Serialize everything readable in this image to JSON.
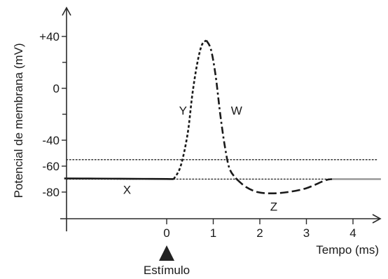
{
  "chart_data": {
    "type": "line",
    "title": "",
    "xlabel": "Tempo (ms)",
    "ylabel": "Potencial de membrana (mV)",
    "xlim": [
      -2.2,
      4.6
    ],
    "ylim": [
      -97,
      57
    ],
    "x_ticks": [
      {
        "value": 0,
        "label": "0"
      },
      {
        "value": 1,
        "label": "1"
      },
      {
        "value": 2,
        "label": "2"
      },
      {
        "value": 3,
        "label": "3"
      },
      {
        "value": 4,
        "label": "4"
      }
    ],
    "y_ticks": [
      {
        "value": 40,
        "label": "+40"
      },
      {
        "value": 0,
        "label": "0"
      },
      {
        "value": -40,
        "label": "-40"
      },
      {
        "value": -60,
        "label": "-60"
      },
      {
        "value": -80,
        "label": "-80"
      }
    ],
    "reference_lines": [
      {
        "y": -55,
        "style": "dotted"
      },
      {
        "y": -70,
        "style": "dotted"
      }
    ],
    "series": [
      {
        "style": "solid",
        "color": "#1a1a1a",
        "x": [
          -2.2,
          -1.5,
          -1.0,
          -0.5,
          0.0,
          0.15
        ],
        "y": [
          -69.5,
          -69.6,
          -69.7,
          -69.8,
          -69.9,
          -70
        ]
      },
      {
        "style": "dashed",
        "color": "#1a1a1a",
        "x": [
          0.15,
          0.3,
          0.45,
          0.55,
          0.65,
          0.75,
          0.85
        ],
        "y": [
          -70,
          -60,
          -35,
          -5,
          18,
          33,
          37
        ]
      },
      {
        "style": "dashdot",
        "color": "#1a1a1a",
        "x": [
          0.85,
          0.95,
          1.05,
          1.15,
          1.25,
          1.35,
          1.5
        ],
        "y": [
          37,
          30,
          10,
          -20,
          -45,
          -62,
          -70
        ]
      },
      {
        "style": "longdash",
        "color": "#1a1a1a",
        "x": [
          1.5,
          1.7,
          1.95,
          2.25,
          2.6,
          3.0,
          3.4,
          3.55
        ],
        "y": [
          -70,
          -76,
          -80,
          -81,
          -80,
          -77,
          -71,
          -70
        ]
      },
      {
        "style": "solid",
        "color": "#999999",
        "x": [
          3.55,
          4.6
        ],
        "y": [
          -70,
          -70
        ]
      }
    ],
    "annotations": [
      {
        "text": "X",
        "x": -0.85,
        "y": -78
      },
      {
        "text": "Y",
        "x": 0.35,
        "y": -17
      },
      {
        "text": "W",
        "x": 1.5,
        "y": -17
      },
      {
        "text": "Z",
        "x": 2.3,
        "y": -91
      }
    ],
    "stimulus": {
      "label": "Estímulo",
      "x": 0
    }
  }
}
